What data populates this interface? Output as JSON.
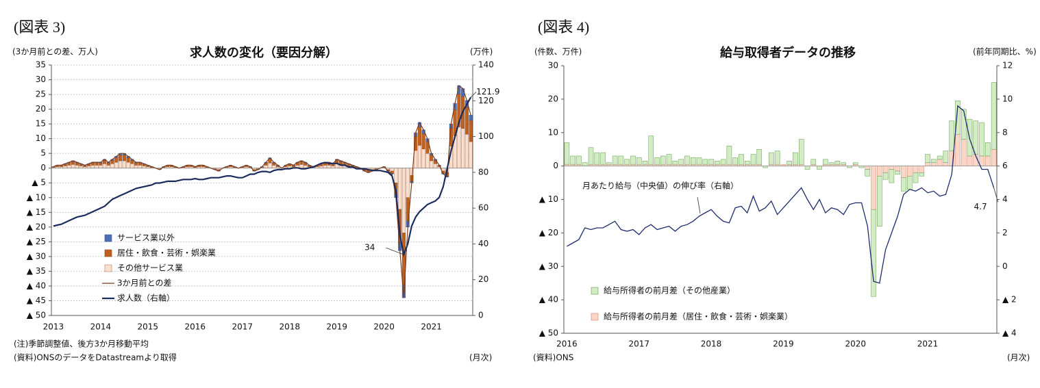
{
  "chart_data": [
    {
      "type": "bar_line",
      "fig_label": "(図表 3)",
      "title": "求人数の変化（要因分解）",
      "y_label": "(3か月前との差、万人)",
      "y2_label": "(万件)",
      "x_unit": "(月次)",
      "notes": [
        "(注)季節調整値、後方3か月移動平均",
        "(資料)ONSのデータをDatastreamより取得"
      ],
      "grid": true,
      "legend": "lower left",
      "ylim": [
        -50,
        35
      ],
      "yticks": [
        35,
        30,
        25,
        20,
        15,
        10,
        5,
        0,
        {
          "value": -5,
          "label": "▲ 5"
        },
        {
          "value": -10,
          "label": "▲ 10"
        },
        {
          "value": -15,
          "label": "▲ 15"
        },
        {
          "value": -20,
          "label": "▲ 20"
        },
        {
          "value": -25,
          "label": "▲ 25"
        },
        {
          "value": -30,
          "label": "▲ 30"
        },
        {
          "value": -35,
          "label": "▲ 35"
        },
        {
          "value": -40,
          "label": "▲ 40"
        },
        {
          "value": -45,
          "label": "▲ 45"
        },
        {
          "value": -50,
          "label": "▲ 50"
        }
      ],
      "y2lim": [
        0,
        140
      ],
      "y2ticks": [
        0,
        20,
        40,
        60,
        80,
        100,
        120,
        140
      ],
      "categories": [
        "2013",
        null,
        null,
        null,
        null,
        null,
        null,
        null,
        null,
        null,
        null,
        null,
        "2014",
        null,
        null,
        null,
        null,
        null,
        null,
        null,
        null,
        null,
        null,
        null,
        "2015",
        null,
        null,
        null,
        null,
        null,
        null,
        null,
        null,
        null,
        null,
        null,
        "2016",
        null,
        null,
        null,
        null,
        null,
        null,
        null,
        null,
        null,
        null,
        null,
        "2017",
        null,
        null,
        null,
        null,
        null,
        null,
        null,
        null,
        null,
        null,
        null,
        "2018",
        null,
        null,
        null,
        null,
        null,
        null,
        null,
        null,
        null,
        null,
        null,
        "2019",
        null,
        null,
        null,
        null,
        null,
        null,
        null,
        null,
        null,
        null,
        null,
        "2020",
        null,
        null,
        null,
        null,
        null,
        null,
        null,
        null,
        null,
        null,
        null,
        "2021",
        null,
        null,
        null,
        null,
        null,
        null,
        null,
        null,
        null,
        null
      ],
      "series": [
        {
          "name": "サービス業以外",
          "kind": "bar",
          "color": "#4f6fb5",
          "stroke": "#3b5592",
          "values": [
            0.05,
            0.1,
            0.1,
            0.15,
            0.2,
            0.25,
            0.2,
            0.15,
            0.1,
            0.15,
            0.2,
            0.2,
            0.2,
            0.3,
            0.2,
            0.3,
            0.4,
            0.5,
            0.5,
            0.4,
            0.3,
            0.2,
            0.2,
            0.15,
            0.1,
            0.05,
            0,
            -0.05,
            0.05,
            0.1,
            0.1,
            0.05,
            0,
            0.05,
            0.1,
            0.1,
            0.05,
            0.1,
            0.1,
            0.05,
            0,
            -0.05,
            -0.1,
            0,
            0.05,
            0.1,
            0.05,
            0,
            0.05,
            0.1,
            0.05,
            -0.1,
            -0.05,
            0.05,
            0.2,
            0.35,
            0.2,
            0.1,
            0,
            0.1,
            0.15,
            0.1,
            0.2,
            0.25,
            0.2,
            0.1,
            0.05,
            0.1,
            0.15,
            0.2,
            0.2,
            0.15,
            0.3,
            0.25,
            0.2,
            0.15,
            0.1,
            0.05,
            0,
            -0.1,
            -0.15,
            -0.1,
            -0.05,
            0,
            0.05,
            -0.1,
            -0.2,
            -1,
            -2.8,
            -4.4,
            -2,
            -0.5,
            1.2,
            1.55,
            1.3,
            1,
            0.5,
            0.3,
            0.1,
            -0.2,
            -0.3,
            1.5,
            2.2,
            2.8,
            2.7,
            2.3,
            1.8
          ]
        },
        {
          "name": "居住・飲食・芸術・娯楽業",
          "kind": "bar",
          "color": "#c0601e",
          "stroke": "#8f4514",
          "values": [
            0.2,
            0.4,
            0.4,
            0.6,
            0.8,
            1,
            0.8,
            0.6,
            0.4,
            0.6,
            0.8,
            0.8,
            0.8,
            1.2,
            0.8,
            1.2,
            1.6,
            2,
            2,
            1.6,
            1.2,
            0.8,
            0.8,
            0.6,
            0.4,
            0.2,
            0,
            -0.2,
            0.2,
            0.4,
            0.4,
            0.2,
            0,
            0.2,
            0.4,
            0.4,
            0.2,
            0.4,
            0.4,
            0.2,
            0,
            -0.2,
            -0.4,
            0,
            0.2,
            0.4,
            0.2,
            0,
            0.2,
            0.4,
            0.2,
            -0.4,
            -0.2,
            0.2,
            0.8,
            1.4,
            0.8,
            0.4,
            0,
            0.4,
            0.6,
            0.4,
            0.8,
            1,
            0.8,
            0.4,
            0.2,
            0.4,
            0.6,
            0.8,
            0.8,
            0.6,
            1.2,
            1,
            0.8,
            0.6,
            0.4,
            0.2,
            0,
            -0.4,
            -0.6,
            -0.4,
            -0.2,
            0,
            0.2,
            -0.4,
            -0.8,
            -4,
            -11.2,
            -17.6,
            -8,
            -2,
            4.8,
            6.2,
            5.2,
            4,
            2,
            1.2,
            0.4,
            -0.8,
            -1.2,
            6,
            8.8,
            11.2,
            10.8,
            9.2,
            7.2
          ]
        },
        {
          "name": "その他サービス業",
          "kind": "bar",
          "color": "#fbe0cf",
          "stroke": "#b07a5a",
          "values": [
            0.25,
            0.5,
            0.5,
            0.75,
            1,
            1.25,
            1,
            0.75,
            0.5,
            0.75,
            1,
            1,
            1,
            1.5,
            1,
            1.5,
            2,
            2.5,
            2.5,
            2,
            1.5,
            1,
            1,
            0.75,
            0.5,
            0.25,
            0,
            -0.25,
            0.25,
            0.5,
            0.5,
            0.25,
            0,
            0.25,
            0.5,
            0.5,
            0.25,
            0.5,
            0.5,
            0.25,
            0,
            -0.25,
            -0.5,
            0,
            0.25,
            0.5,
            0.25,
            0,
            0.25,
            0.5,
            0.25,
            -0.5,
            -0.25,
            0.25,
            1,
            1.75,
            1,
            0.5,
            0,
            0.5,
            0.75,
            0.5,
            1,
            1.25,
            1,
            0.5,
            0.25,
            0.5,
            0.75,
            1,
            1,
            0.75,
            1.5,
            1.25,
            1,
            0.75,
            0.5,
            0.25,
            0,
            -0.5,
            -0.75,
            -0.5,
            -0.25,
            0,
            0.25,
            -0.5,
            -1,
            -5,
            -14,
            -22,
            -10,
            -2.5,
            6,
            7.75,
            6.5,
            5,
            2.5,
            1.5,
            0.5,
            -1,
            -1.5,
            7.5,
            11,
            14,
            13.5,
            11.5,
            9
          ]
        },
        {
          "name": "3か月前との差",
          "kind": "line",
          "color": "#7b3b1a",
          "width": 1.2,
          "values": [
            0.5,
            1,
            1,
            1.5,
            2,
            2.5,
            2,
            1.5,
            1,
            1.5,
            2,
            2,
            2,
            3,
            2,
            3,
            4,
            5,
            5,
            4,
            3,
            2,
            2,
            1.5,
            1,
            0.5,
            0,
            -0.5,
            0.5,
            1,
            1,
            0.5,
            0,
            0.5,
            1,
            1,
            0.5,
            1,
            1,
            0.5,
            0,
            -0.5,
            -1,
            0,
            0.5,
            1,
            0.5,
            0,
            0.5,
            1,
            0.5,
            -1,
            -0.5,
            0.5,
            2,
            3.5,
            2,
            1,
            0,
            1,
            1.5,
            1,
            2,
            2.5,
            2,
            1,
            0.5,
            1,
            1.5,
            2,
            2,
            1.5,
            3,
            2.5,
            2,
            1.5,
            1,
            0.5,
            0,
            -1,
            -1.5,
            -1,
            -0.5,
            0,
            0.5,
            -1,
            -2,
            -10,
            -28,
            -44,
            -20,
            -5,
            12,
            15.5,
            13,
            10,
            5,
            3,
            1,
            -2,
            -3,
            15,
            22,
            28,
            27,
            23,
            18
          ]
        },
        {
          "name": "求人数（右軸）",
          "kind": "line",
          "axis": "y2",
          "color": "#1c2b5c",
          "width": 2.2,
          "label_points": [
            "min",
            "last"
          ],
          "values": [
            50,
            50.5,
            51,
            52,
            53,
            54,
            55,
            55.5,
            56,
            57,
            58,
            59,
            60,
            61,
            63,
            65,
            66,
            67,
            68,
            69,
            70,
            71,
            71.5,
            72,
            72.5,
            73,
            74,
            74,
            74.5,
            75,
            75,
            75,
            75.5,
            76,
            76,
            76,
            76.5,
            76,
            76,
            76.5,
            77,
            77,
            77,
            77.5,
            78,
            78,
            77.5,
            77,
            77,
            78,
            79,
            79,
            80,
            80.5,
            80.5,
            80,
            81,
            81.5,
            81.5,
            82,
            82,
            82.5,
            82.5,
            82,
            82,
            82.5,
            83,
            84,
            85,
            85.5,
            85,
            85,
            85,
            84,
            84,
            83,
            83,
            82,
            82,
            82,
            81.5,
            81,
            81,
            81,
            80.5,
            80,
            78,
            70,
            45,
            34,
            40,
            50,
            55,
            58,
            60,
            62,
            63,
            64,
            66,
            72,
            82,
            92,
            100,
            108,
            114,
            118,
            121.9
          ]
        }
      ]
    },
    {
      "type": "bar_line",
      "fig_label": "(図表 4)",
      "title": "給与取得者データの推移",
      "y_label": "(件数、万件)",
      "y2_label": "(前年同期比、%)",
      "x_unit": "(月次)",
      "notes": [
        "(資料)ONS"
      ],
      "grid": false,
      "legend": "lower left",
      "ylim": [
        -50,
        30
      ],
      "yticks": [
        30,
        20,
        10,
        0,
        {
          "value": -10,
          "label": "▲ 10"
        },
        {
          "value": -20,
          "label": "▲ 20"
        },
        {
          "value": -30,
          "label": "▲ 30"
        },
        {
          "value": -40,
          "label": "▲ 40"
        },
        {
          "value": -50,
          "label": "▲ 50"
        }
      ],
      "y2lim": [
        -4,
        12
      ],
      "y2ticks": [
        12,
        10,
        8,
        6,
        4,
        2,
        0,
        {
          "value": -2,
          "label": "▲ 2"
        },
        {
          "value": -4,
          "label": "▲ 4"
        }
      ],
      "categories": [
        "2016",
        null,
        null,
        null,
        null,
        null,
        null,
        null,
        null,
        null,
        null,
        null,
        "2017",
        null,
        null,
        null,
        null,
        null,
        null,
        null,
        null,
        null,
        null,
        null,
        "2018",
        null,
        null,
        null,
        null,
        null,
        null,
        null,
        null,
        null,
        null,
        null,
        "2019",
        null,
        null,
        null,
        null,
        null,
        null,
        null,
        null,
        null,
        null,
        null,
        "2020",
        null,
        null,
        null,
        null,
        null,
        null,
        null,
        null,
        null,
        null,
        null,
        "2021",
        null,
        null,
        null,
        null,
        null,
        null,
        null,
        null,
        null,
        null,
        null
      ],
      "series": [
        {
          "name": "給与所得者の前月差（その他産業）",
          "kind": "bar",
          "color": "#d3ecc4",
          "stroke": "#5a9a4a",
          "values": [
            6.5,
            2.5,
            2.5,
            1,
            5,
            3.5,
            3.5,
            0.5,
            2.5,
            2.5,
            1.5,
            2.5,
            2,
            1,
            8.5,
            2,
            2.5,
            3,
            1,
            1.5,
            2.5,
            2,
            2,
            1.5,
            1.5,
            1,
            1.5,
            5.5,
            2,
            3,
            1,
            3,
            4.5,
            -0.5,
            3.5,
            4,
            0,
            1,
            3.5,
            7.5,
            -1,
            1.5,
            -1,
            1.5,
            0.5,
            1,
            0.5,
            -0.5,
            0.5,
            -0.5,
            -2,
            -26,
            -15,
            -2,
            -4,
            -1,
            -4,
            -4,
            -3,
            -1,
            2.5,
            1,
            1,
            3.5,
            9,
            10,
            9,
            11,
            10,
            10,
            4,
            20
          ]
        },
        {
          "name": "給与所得者の前月差（居住・飲食・芸術・娯楽業）",
          "kind": "bar",
          "color": "#fbd6c6",
          "stroke": "#d0806a",
          "values": [
            0.5,
            0.5,
            0.5,
            0,
            0.5,
            0.5,
            0.5,
            0.5,
            0.5,
            0.5,
            0.5,
            0.5,
            0.5,
            0.5,
            0.5,
            0.5,
            0.5,
            0.5,
            0.5,
            0.5,
            0.5,
            0.5,
            0.5,
            0.5,
            0.5,
            0.5,
            0.5,
            0.5,
            0.5,
            0.5,
            0.5,
            0.5,
            0.5,
            0,
            0.5,
            0.5,
            0.5,
            0.5,
            0.5,
            0.5,
            0,
            0.5,
            0,
            0.5,
            0.5,
            0.5,
            0.5,
            0,
            0.5,
            0,
            -1,
            -13,
            -3,
            -2,
            -1,
            -1.5,
            -3.5,
            -3,
            -2,
            -2,
            1,
            1,
            2,
            1,
            4.5,
            9.5,
            8,
            3,
            3.5,
            3,
            3,
            5
          ]
        },
        {
          "name": "月あたり給与（中央値）の伸び率（右軸）",
          "kind": "line",
          "axis": "y2",
          "color": "#1c2b6e",
          "width": 1.3,
          "in_legend": false,
          "label_points": [
            "last"
          ],
          "values": [
            1.2,
            1.4,
            1.6,
            2.3,
            2.2,
            2.3,
            2.3,
            2.5,
            2.7,
            2.2,
            2.1,
            2.2,
            1.9,
            2.3,
            2.5,
            2.2,
            2.3,
            2.4,
            2.1,
            2.4,
            2.5,
            2.7,
            3.0,
            3.2,
            3.4,
            3.0,
            2.7,
            2.6,
            3.5,
            3.6,
            3.2,
            4.2,
            3.3,
            3.5,
            3.9,
            3.1,
            3.5,
            3.9,
            4.3,
            4.7,
            4.0,
            3.4,
            4.0,
            3.2,
            3.5,
            3.4,
            3.1,
            3.7,
            3.8,
            3.8,
            2.4,
            -0.9,
            -1.0,
            1.0,
            2.0,
            3.0,
            4.3,
            4.6,
            4.5,
            4.7,
            4.4,
            4.5,
            4.2,
            4.3,
            5.5,
            9.6,
            9.3,
            7.6,
            6.6,
            5.8,
            5.8,
            4.7
          ]
        }
      ]
    }
  ]
}
